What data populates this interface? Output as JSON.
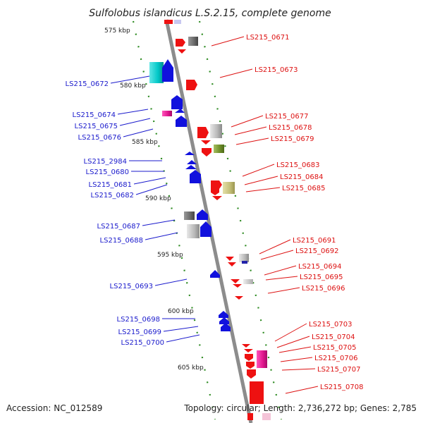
{
  "title": "Sulfolobus islandicus L.S.2.15, complete genome",
  "footer": {
    "accession": "Accession: NC_012589",
    "summary": "Topology: circular; Length: 2,736,272 bp; Genes: 2,785"
  },
  "colors": {
    "backbone": "#8c8c8c",
    "tick": "#2e8b22",
    "left_label": "#1a1acc",
    "right_label": "#dd1111"
  },
  "kbp_markers": [
    "575 kbp",
    "580 kbp",
    "585 kbp",
    "590 kbp",
    "595 kbp",
    "600 kbp",
    "605 kbp"
  ],
  "left_genes": [
    "LS215_0672",
    "LS215_0674",
    "LS215_0675",
    "LS215_0676",
    "LS215_2984",
    "LS215_0680",
    "LS215_0681",
    "LS215_0682",
    "LS215_0687",
    "LS215_0688",
    "LS215_0693",
    "LS215_0698",
    "LS215_0699",
    "LS215_0700"
  ],
  "right_genes": [
    "LS215_0671",
    "LS215_0673",
    "LS215_0677",
    "LS215_0678",
    "LS215_0679",
    "LS215_0683",
    "LS215_0684",
    "LS215_0685",
    "LS215_0691",
    "LS215_0692",
    "LS215_0694",
    "LS215_0695",
    "LS215_0696",
    "LS215_0703",
    "LS215_0704",
    "LS215_0705",
    "LS215_0706",
    "LS215_0707",
    "LS215_0708"
  ]
}
